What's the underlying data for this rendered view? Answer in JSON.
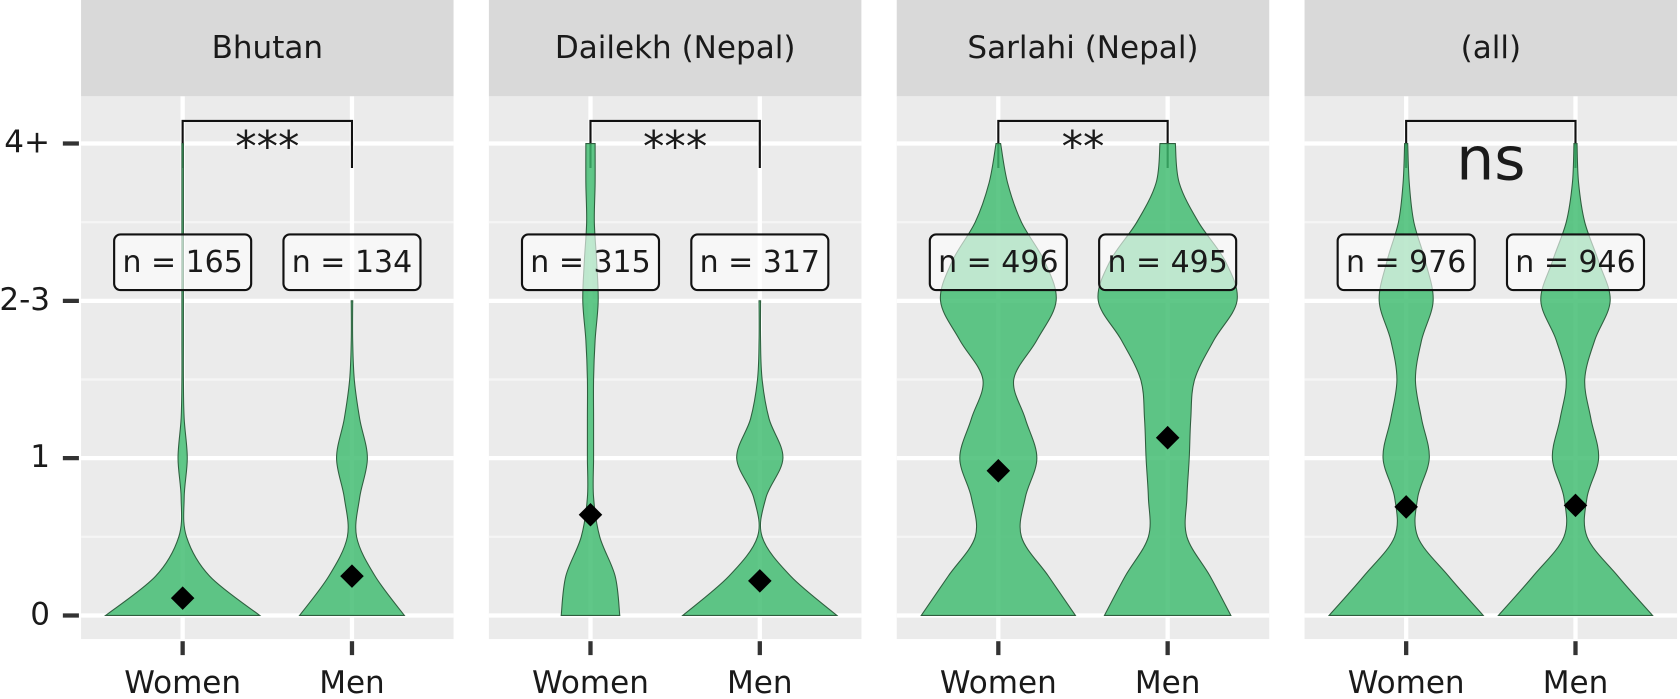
{
  "chart_data": [
    {
      "type": "violin",
      "title": "Bhutan",
      "categories": [
        "Women",
        "Men"
      ],
      "n_labels": [
        "n = 165",
        "n = 134"
      ],
      "significance": "***",
      "color": "#3dbb6e",
      "grid": true,
      "ylim": [
        -0.15,
        3.3
      ],
      "yticks": [
        0,
        1,
        {
          "value": 2,
          "label": "2-3"
        },
        {
          "value": 3,
          "label": "4+"
        }
      ],
      "means": [
        0.11,
        0.25
      ],
      "density_y": [
        0,
        0.25,
        0.5,
        0.75,
        1,
        1.25,
        1.5,
        1.75,
        2,
        2.25,
        2.5,
        2.75,
        3
      ],
      "density": [
        [
          1.0,
          0.35,
          0.05,
          0.02,
          0.06,
          0.02,
          0.01,
          0.01,
          0.01,
          0.01,
          0.01,
          0.01,
          0.01
        ],
        [
          0.68,
          0.3,
          0.06,
          0.1,
          0.2,
          0.1,
          0.03,
          0.01,
          0.01,
          null,
          null,
          null,
          null
        ]
      ]
    },
    {
      "type": "violin",
      "title": "Dailekh (Nepal)",
      "categories": [
        "Women",
        "Men"
      ],
      "n_labels": [
        "n = 315",
        "n = 317"
      ],
      "significance": "***",
      "means": [
        0.64,
        0.22
      ],
      "density_y": [
        0,
        0.25,
        0.5,
        0.75,
        1,
        1.25,
        1.5,
        1.75,
        2,
        2.25,
        2.5,
        2.75,
        3
      ],
      "density": [
        [
          0.38,
          0.32,
          0.12,
          0.04,
          0.04,
          0.04,
          0.04,
          0.06,
          0.1,
          0.08,
          0.05,
          0.06,
          0.06
        ],
        [
          1.0,
          0.4,
          0.03,
          0.08,
          0.3,
          0.12,
          0.03,
          0.01,
          0.01,
          null,
          null,
          null,
          null
        ]
      ]
    },
    {
      "type": "violin",
      "title": "Sarlahi (Nepal)",
      "categories": [
        "Women",
        "Men"
      ],
      "n_labels": [
        "n = 496",
        "n = 495"
      ],
      "significance": "**",
      "means": [
        0.92,
        1.13
      ],
      "density_y": [
        0,
        0.25,
        0.5,
        0.75,
        1,
        1.25,
        1.5,
        1.75,
        2,
        2.25,
        2.5,
        2.75,
        3
      ],
      "density": [
        [
          1.0,
          0.65,
          0.3,
          0.35,
          0.5,
          0.35,
          0.2,
          0.5,
          0.75,
          0.6,
          0.3,
          0.12,
          0.03
        ],
        [
          0.82,
          0.55,
          0.25,
          0.25,
          0.28,
          0.3,
          0.35,
          0.6,
          0.9,
          0.75,
          0.4,
          0.15,
          0.1
        ]
      ]
    },
    {
      "type": "violin",
      "title": "(all)",
      "categories": [
        "Women",
        "Men"
      ],
      "n_labels": [
        "n = 976",
        "n = 946"
      ],
      "significance": "ns",
      "means": [
        0.69,
        0.7
      ],
      "density_y": [
        0,
        0.25,
        0.5,
        0.75,
        1,
        1.25,
        1.5,
        1.75,
        2,
        2.25,
        2.5,
        2.75,
        3
      ],
      "density": [
        [
          1.0,
          0.55,
          0.15,
          0.15,
          0.3,
          0.2,
          0.12,
          0.2,
          0.35,
          0.25,
          0.1,
          0.04,
          0.02
        ],
        [
          1.0,
          0.55,
          0.15,
          0.15,
          0.3,
          0.2,
          0.12,
          0.25,
          0.45,
          0.3,
          0.12,
          0.04,
          0.02
        ]
      ]
    }
  ]
}
